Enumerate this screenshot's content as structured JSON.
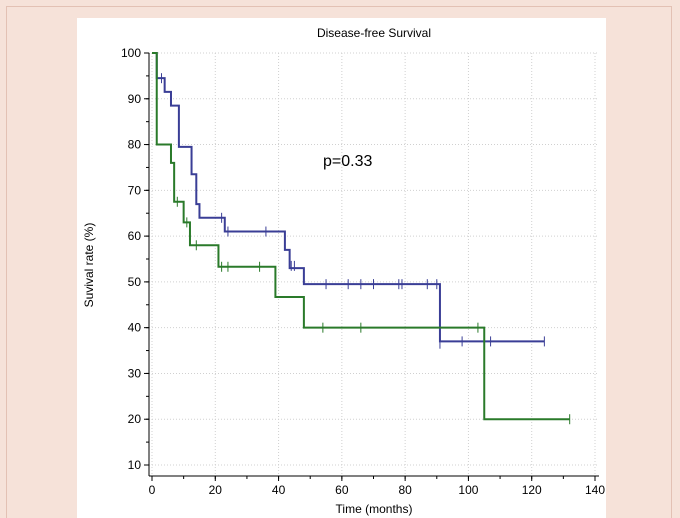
{
  "chart_data": {
    "type": "line",
    "title": "Disease-free Survival",
    "xlabel": "Time (months)",
    "ylabel": "Suvival rate (%)",
    "xlim": [
      0,
      140
    ],
    "ylim": [
      10,
      100
    ],
    "x_ticks": [
      "0",
      "20",
      "40",
      "60",
      "80",
      "100",
      "120",
      "140"
    ],
    "y_ticks": [
      "10",
      "20",
      "30",
      "40",
      "50",
      "60",
      "70",
      "80",
      "90",
      "100"
    ],
    "annotation": "p=0.33",
    "grid": true,
    "series": [
      {
        "color": "#3a3e96",
        "steps": [
          [
            0,
            100
          ],
          [
            1.5,
            94.5
          ],
          [
            4,
            91.5
          ],
          [
            6,
            88.5
          ],
          [
            8.5,
            79.5
          ],
          [
            12.5,
            73.5
          ],
          [
            14,
            67
          ],
          [
            15,
            64
          ],
          [
            23,
            61
          ],
          [
            42,
            57
          ],
          [
            43.5,
            53
          ],
          [
            48,
            49.5
          ],
          [
            91,
            37
          ],
          [
            124,
            37
          ]
        ],
        "censored": [
          [
            3,
            94.5
          ],
          [
            22,
            64
          ],
          [
            24,
            61
          ],
          [
            36,
            61
          ],
          [
            44,
            53.5
          ],
          [
            45,
            53.5
          ],
          [
            55,
            49.5
          ],
          [
            62,
            49.5
          ],
          [
            66,
            49.5
          ],
          [
            70,
            49.5
          ],
          [
            78,
            49.5
          ],
          [
            79,
            49.5
          ],
          [
            87,
            49.5
          ],
          [
            90,
            49.5
          ],
          [
            91,
            36.5
          ],
          [
            98,
            37
          ],
          [
            107,
            37
          ],
          [
            124,
            37
          ]
        ]
      },
      {
        "color": "#2a7a2a",
        "steps": [
          [
            0,
            100
          ],
          [
            1.5,
            80
          ],
          [
            6,
            76
          ],
          [
            7,
            67.5
          ],
          [
            10,
            63
          ],
          [
            12,
            58
          ],
          [
            21,
            53.3
          ],
          [
            39,
            46.7
          ],
          [
            48,
            40
          ],
          [
            105,
            20
          ],
          [
            132,
            20
          ]
        ],
        "censored": [
          [
            8,
            67.5
          ],
          [
            11,
            63
          ],
          [
            14,
            58
          ],
          [
            22,
            53.3
          ],
          [
            24,
            53.3
          ],
          [
            34,
            53.3
          ],
          [
            54,
            40
          ],
          [
            66,
            40
          ],
          [
            103,
            40
          ],
          [
            132,
            20
          ]
        ]
      }
    ]
  }
}
